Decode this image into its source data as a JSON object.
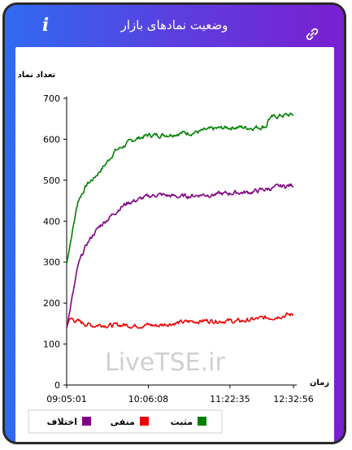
{
  "header": {
    "title": "وضعیت نمادهای بازار",
    "info_icon": "info-icon",
    "link_icon": "link-icon"
  },
  "watermark": "LiveTSE.ir",
  "colors": {
    "positive": "#008000",
    "negative": "#ee0000",
    "difference": "#800080"
  },
  "chart_data": {
    "type": "line",
    "ylabel": "تعداد نماد",
    "xlabel": "زمان",
    "ylim": [
      0,
      700
    ],
    "yticks": [
      "0",
      "100",
      "200",
      "300",
      "400",
      "500",
      "600",
      "700"
    ],
    "xticks": [
      "09:05:01",
      "10:06:08",
      "11:22:35",
      "12:32:56"
    ],
    "x_tick_positions": [
      0,
      0.36,
      0.72,
      1.0
    ],
    "grid": false,
    "legend_position": "bottom",
    "series": [
      {
        "name": "مثبت",
        "color": "#008000",
        "x": [
          0,
          0.01,
          0.03,
          0.05,
          0.07,
          0.09,
          0.12,
          0.15,
          0.18,
          0.21,
          0.24,
          0.27,
          0.3,
          0.33,
          0.36,
          0.4,
          0.45,
          0.5,
          0.55,
          0.6,
          0.65,
          0.7,
          0.75,
          0.8,
          0.85,
          0.88,
          0.89,
          0.92,
          0.95,
          1.0
        ],
        "values": [
          295,
          330,
          390,
          450,
          470,
          490,
          505,
          525,
          545,
          570,
          580,
          590,
          600,
          605,
          610,
          610,
          612,
          615,
          616,
          620,
          625,
          628,
          630,
          628,
          630,
          632,
          650,
          655,
          658,
          660
        ]
      },
      {
        "name": "منفی",
        "color": "#ee0000",
        "x": [
          0,
          0.02,
          0.05,
          0.08,
          0.12,
          0.15,
          0.2,
          0.25,
          0.3,
          0.35,
          0.4,
          0.45,
          0.5,
          0.55,
          0.6,
          0.65,
          0.7,
          0.75,
          0.8,
          0.85,
          0.9,
          0.95,
          1.0
        ],
        "values": [
          152,
          162,
          155,
          150,
          145,
          148,
          145,
          147,
          145,
          147,
          145,
          150,
          152,
          155,
          157,
          157,
          157,
          155,
          158,
          162,
          165,
          170,
          172
        ]
      },
      {
        "name": "اختلاف",
        "color": "#800080",
        "x": [
          0,
          0.01,
          0.03,
          0.05,
          0.07,
          0.09,
          0.12,
          0.15,
          0.18,
          0.21,
          0.24,
          0.27,
          0.3,
          0.33,
          0.36,
          0.4,
          0.45,
          0.5,
          0.55,
          0.6,
          0.65,
          0.7,
          0.75,
          0.8,
          0.85,
          0.9,
          0.95,
          1.0
        ],
        "values": [
          143,
          170,
          230,
          290,
          320,
          345,
          370,
          390,
          405,
          420,
          435,
          445,
          450,
          455,
          460,
          465,
          462,
          460,
          462,
          465,
          465,
          467,
          470,
          470,
          475,
          480,
          485,
          488
        ]
      }
    ]
  }
}
